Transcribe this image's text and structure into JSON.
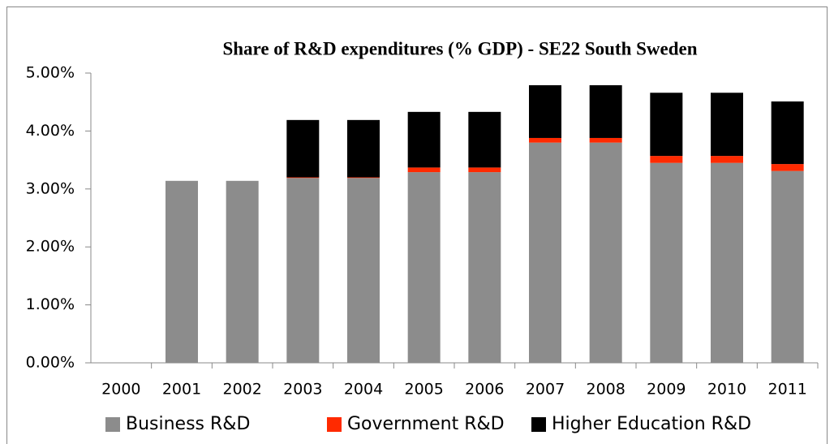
{
  "chart_data": {
    "type": "stacked_bar",
    "title": "Share of R&D expenditures (% GDP) - SE22 South Sweden",
    "categories": [
      "2000",
      "2001",
      "2002",
      "2003",
      "2004",
      "2005",
      "2006",
      "2007",
      "2008",
      "2009",
      "2010",
      "2011"
    ],
    "series": [
      {
        "name": "Business R&D",
        "color": "#8c8c8c",
        "values": [
          null,
          3.14,
          3.14,
          3.19,
          3.19,
          3.29,
          3.29,
          3.8,
          3.8,
          3.45,
          3.45,
          3.31
        ]
      },
      {
        "name": "Government R&D",
        "color": "#ff2a00",
        "values": [
          null,
          null,
          null,
          0.01,
          0.01,
          0.08,
          0.08,
          0.08,
          0.08,
          0.12,
          0.12,
          0.12
        ]
      },
      {
        "name": "Higher Education R&D",
        "color": "#000000",
        "values": [
          null,
          null,
          null,
          0.99,
          0.99,
          0.96,
          0.96,
          0.91,
          0.91,
          1.09,
          1.09,
          1.08
        ]
      }
    ],
    "ylim": [
      0,
      5
    ],
    "yticks": [
      {
        "value": 0,
        "label": "0.00%"
      },
      {
        "value": 1,
        "label": "1.00%"
      },
      {
        "value": 2,
        "label": "2.00%"
      },
      {
        "value": 3,
        "label": "3.00%"
      },
      {
        "value": 4,
        "label": "4.00%"
      },
      {
        "value": 5,
        "label": "5.00%"
      }
    ],
    "grid": false,
    "legend": "bottom"
  }
}
